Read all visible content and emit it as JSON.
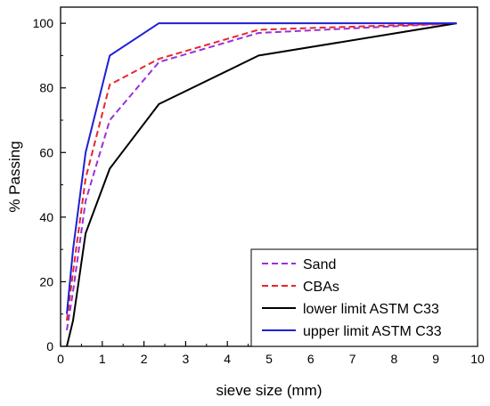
{
  "chart_data": {
    "type": "line",
    "title": "",
    "xlabel": "sieve size (mm)",
    "ylabel": "% Passing",
    "xlim": [
      0,
      10
    ],
    "ylim": [
      0,
      105
    ],
    "xticks": [
      0,
      1,
      2,
      3,
      4,
      5,
      6,
      7,
      8,
      9,
      10
    ],
    "yticks": [
      0,
      20,
      40,
      60,
      80,
      100
    ],
    "grid": false,
    "legend_position": "bottom-right",
    "series": [
      {
        "name": "Sand",
        "color": "#9b30d9",
        "dash": "dashed",
        "x": [
          0.15,
          0.3,
          0.6,
          1.18,
          2.36,
          4.75,
          9.5
        ],
        "y": [
          5,
          17,
          45,
          70,
          88,
          97,
          100
        ]
      },
      {
        "name": "CBAs",
        "color": "#e8262b",
        "dash": "dashed",
        "x": [
          0.15,
          0.3,
          0.6,
          1.18,
          2.36,
          4.75,
          9.5
        ],
        "y": [
          8,
          23,
          52,
          81,
          89,
          98,
          100
        ]
      },
      {
        "name": "lower limit ASTM C33",
        "color": "#000000",
        "dash": "solid",
        "x": [
          0.15,
          0.3,
          0.6,
          1.18,
          2.36,
          4.75,
          9.5
        ],
        "y": [
          0,
          8,
          35,
          55,
          75,
          90,
          100
        ]
      },
      {
        "name": "upper limit ASTM C33",
        "color": "#1f1fd6",
        "dash": "solid",
        "x": [
          0.15,
          0.3,
          0.6,
          1.18,
          2.36,
          4.75,
          9.5
        ],
        "y": [
          10,
          30,
          60,
          90,
          100,
          100,
          100
        ]
      }
    ]
  }
}
